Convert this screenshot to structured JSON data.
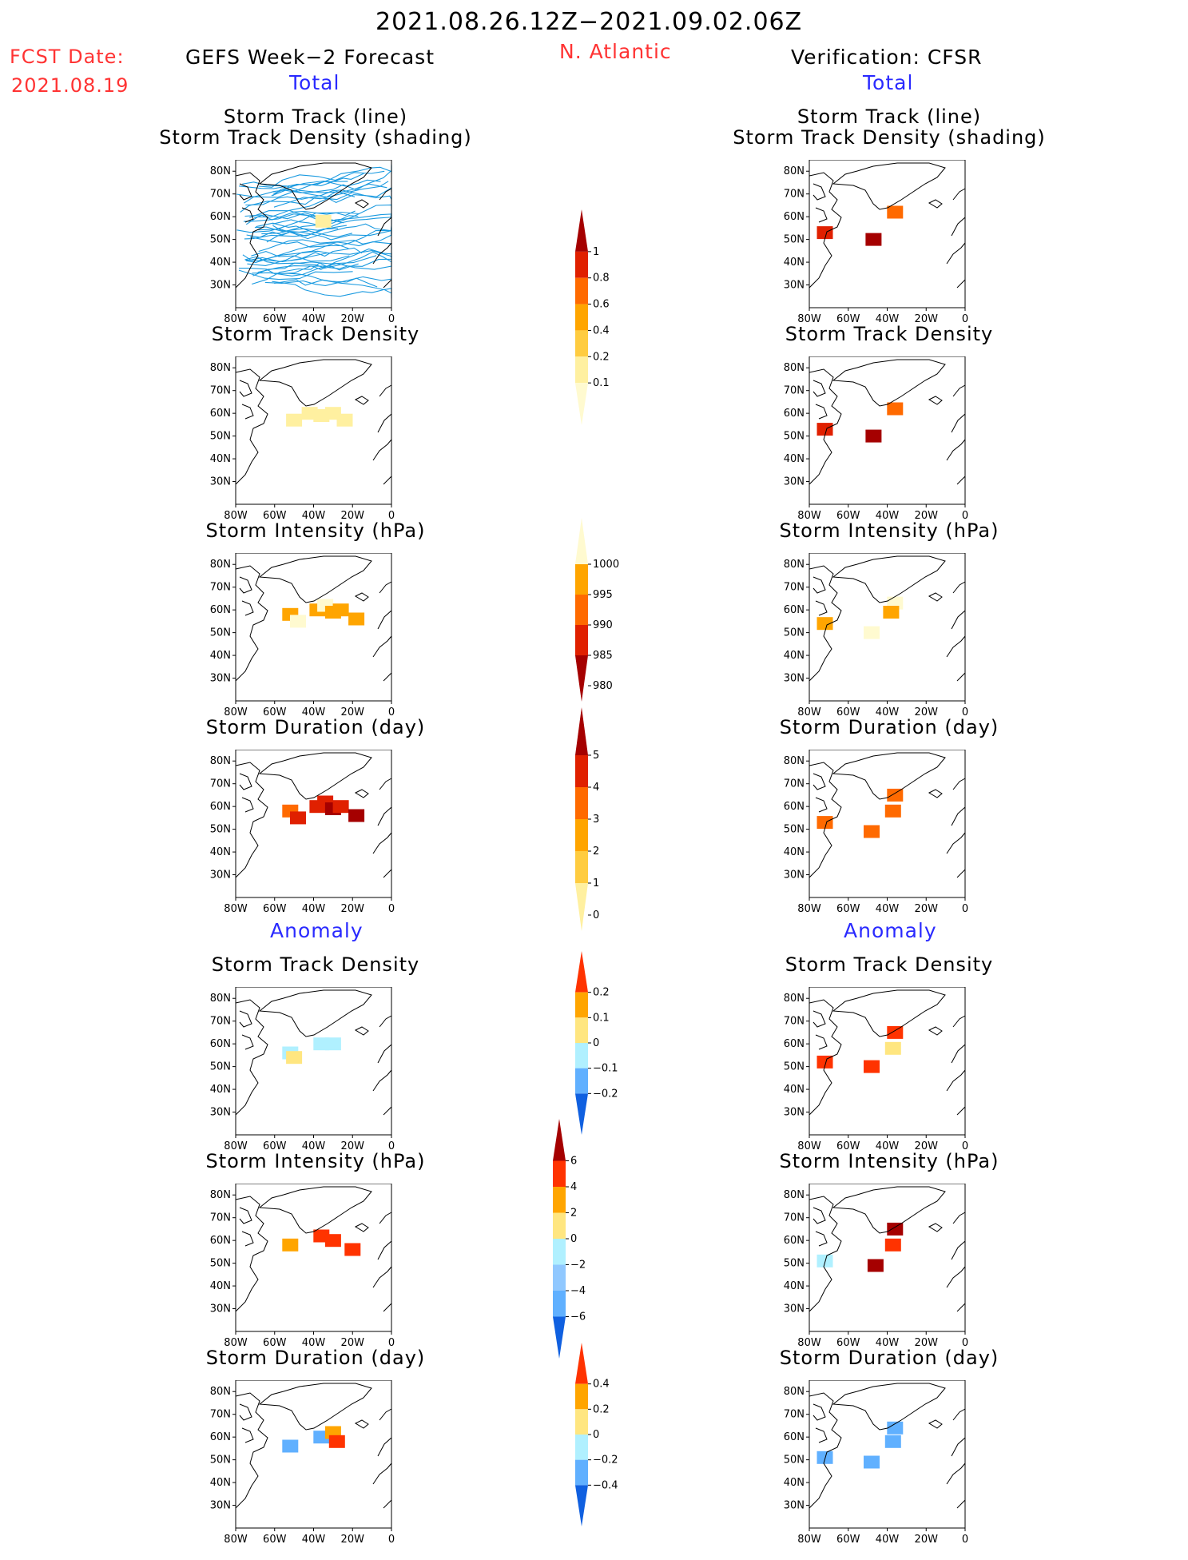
{
  "header": {
    "date_range": "2021.08.26.12Z−2021.09.02.06Z",
    "fcst_label": "FCST Date:",
    "fcst_date": "2021.08.19",
    "left_title": "GEFS Week−2 Forecast",
    "region": "N. Atlantic",
    "right_title": "Verification: CFSR",
    "section_total": "Total",
    "section_anomaly": "Anomaly"
  },
  "axes": {
    "lon_ticks": [
      "80W",
      "60W",
      "40W",
      "20W",
      "0"
    ],
    "lat_ticks": [
      "80N",
      "70N",
      "60N",
      "50N",
      "40N",
      "30N"
    ]
  },
  "panel_titles": {
    "track_line": "Storm Track (line)",
    "track_density_shading": "Storm Track Density (shading)",
    "track_density": "Storm Track Density",
    "intensity": "Storm Intensity (hPa)",
    "duration": "Storm Duration (day)"
  },
  "colorbars": {
    "density": {
      "labels": [
        "1",
        "0.8",
        "0.6",
        "0.4",
        "0.2",
        "0.1"
      ],
      "colors": [
        "#a50000",
        "#e02000",
        "#ff6a00",
        "#ffa500",
        "#ffcc40",
        "#fff0a0",
        "#fffad0"
      ]
    },
    "intensity": {
      "labels": [
        "1000",
        "995",
        "990",
        "985",
        "980"
      ],
      "colors": [
        "#fffad0",
        "#ffa500",
        "#ff6a00",
        "#e02000",
        "#a50000"
      ]
    },
    "duration": {
      "labels": [
        "5",
        "4",
        "3",
        "2",
        "1",
        "0"
      ],
      "colors": [
        "#a50000",
        "#e02000",
        "#ff6a00",
        "#ffa500",
        "#ffcc40",
        "#fff0a0"
      ]
    },
    "anom_density": {
      "labels": [
        "0.2",
        "0.1",
        "0",
        "−0.1",
        "−0.2"
      ],
      "colors": [
        "#ff3300",
        "#ffa500",
        "#ffe680",
        "#b0f0ff",
        "#60b0ff",
        "#1060e0"
      ]
    },
    "anom_intensity": {
      "labels": [
        "6",
        "4",
        "2",
        "0",
        "−2",
        "−4",
        "−6"
      ],
      "colors": [
        "#a50000",
        "#ff3300",
        "#ffa500",
        "#ffe680",
        "#b0f0ff",
        "#90c8ff",
        "#60b0ff",
        "#1060e0"
      ]
    },
    "anom_duration": {
      "labels": [
        "0.4",
        "0.2",
        "0",
        "−0.2",
        "−0.4"
      ],
      "colors": [
        "#ff3300",
        "#ffa500",
        "#ffe680",
        "#b0f0ff",
        "#60b0ff",
        "#1060e0"
      ]
    }
  },
  "chart_data": [
    {
      "type": "heatmap",
      "panel": "gefs-track-density-shading",
      "title": "Storm Track (line) / Storm Track Density (shading)",
      "lines": "many blue storm tracks across 20N-80N",
      "cells": [
        [
          -35,
          58,
          0.1
        ]
      ]
    },
    {
      "type": "heatmap",
      "panel": "gefs-track-density",
      "title": "Storm Track Density",
      "cells": [
        [
          -50,
          57,
          0.1
        ],
        [
          -42,
          60,
          0.1
        ],
        [
          -36,
          59,
          0.1
        ],
        [
          -30,
          60,
          0.1
        ],
        [
          -24,
          57,
          0.1
        ]
      ]
    },
    {
      "type": "heatmap",
      "panel": "gefs-intensity",
      "title": "Storm Intensity (hPa)",
      "cells": [
        [
          -52,
          58,
          990
        ],
        [
          -48,
          55,
          995
        ],
        [
          -38,
          60,
          990
        ],
        [
          -34,
          62,
          995
        ],
        [
          -30,
          59,
          990
        ],
        [
          -26,
          60,
          990
        ],
        [
          -18,
          56,
          990
        ]
      ]
    },
    {
      "type": "heatmap",
      "panel": "gefs-duration",
      "title": "Storm Duration (day)",
      "cells": [
        [
          -52,
          58,
          2
        ],
        [
          -48,
          55,
          3
        ],
        [
          -38,
          60,
          3
        ],
        [
          -34,
          62,
          3
        ],
        [
          -30,
          59,
          4
        ],
        [
          -26,
          60,
          3
        ],
        [
          -18,
          56,
          4
        ]
      ]
    },
    {
      "type": "heatmap",
      "panel": "cfsr-track-density-shading",
      "title": "Storm Track (line) / Storm Track Density (shading)",
      "cells": [
        [
          -72,
          53,
          0.8
        ],
        [
          -47,
          50,
          1
        ],
        [
          -36,
          62,
          0.6
        ]
      ]
    },
    {
      "type": "heatmap",
      "panel": "cfsr-track-density",
      "title": "Storm Track Density",
      "cells": [
        [
          -72,
          53,
          0.8
        ],
        [
          -47,
          50,
          1
        ],
        [
          -36,
          62,
          0.6
        ]
      ]
    },
    {
      "type": "heatmap",
      "panel": "cfsr-intensity",
      "title": "Storm Intensity (hPa)",
      "cells": [
        [
          -72,
          54,
          990
        ],
        [
          -48,
          50,
          1000
        ],
        [
          -36,
          63,
          995
        ],
        [
          -38,
          59,
          990
        ]
      ]
    },
    {
      "type": "heatmap",
      "panel": "cfsr-duration",
      "title": "Storm Duration (day)",
      "cells": [
        [
          -72,
          53,
          2
        ],
        [
          -48,
          49,
          2
        ],
        [
          -36,
          65,
          2
        ],
        [
          -37,
          58,
          2
        ]
      ]
    },
    {
      "type": "heatmap",
      "panel": "gefs-anom-density",
      "title": "Storm Track Density",
      "cells": [
        [
          -52,
          56,
          -0.05
        ],
        [
          -50,
          54,
          0.05
        ],
        [
          -36,
          60,
          -0.05
        ],
        [
          -30,
          60,
          -0.05
        ]
      ]
    },
    {
      "type": "heatmap",
      "panel": "gefs-anom-intensity",
      "title": "Storm Intensity (hPa)",
      "cells": [
        [
          -52,
          58,
          2
        ],
        [
          -36,
          62,
          4
        ],
        [
          -30,
          60,
          4
        ],
        [
          -20,
          56,
          4
        ]
      ]
    },
    {
      "type": "heatmap",
      "panel": "gefs-anom-duration",
      "title": "Storm Duration (day)",
      "cells": [
        [
          -52,
          56,
          -0.4
        ],
        [
          -36,
          60,
          -0.4
        ],
        [
          -30,
          62,
          0.2
        ],
        [
          -28,
          58,
          0.4
        ]
      ]
    },
    {
      "type": "heatmap",
      "panel": "cfsr-anom-density",
      "title": "Storm Track Density",
      "cells": [
        [
          -72,
          52,
          0.2
        ],
        [
          -48,
          50,
          0.2
        ],
        [
          -36,
          65,
          0.2
        ],
        [
          -37,
          58,
          0.05
        ]
      ]
    },
    {
      "type": "heatmap",
      "panel": "cfsr-anom-intensity",
      "title": "Storm Intensity (hPa)",
      "cells": [
        [
          -72,
          51,
          -1
        ],
        [
          -46,
          49,
          6
        ],
        [
          -36,
          65,
          6
        ],
        [
          -37,
          58,
          4
        ]
      ]
    },
    {
      "type": "heatmap",
      "panel": "cfsr-anom-duration",
      "title": "Storm Duration (day)",
      "cells": [
        [
          -72,
          51,
          -0.4
        ],
        [
          -48,
          49,
          -0.4
        ],
        [
          -36,
          64,
          -0.4
        ],
        [
          -37,
          58,
          -0.4
        ]
      ]
    }
  ]
}
